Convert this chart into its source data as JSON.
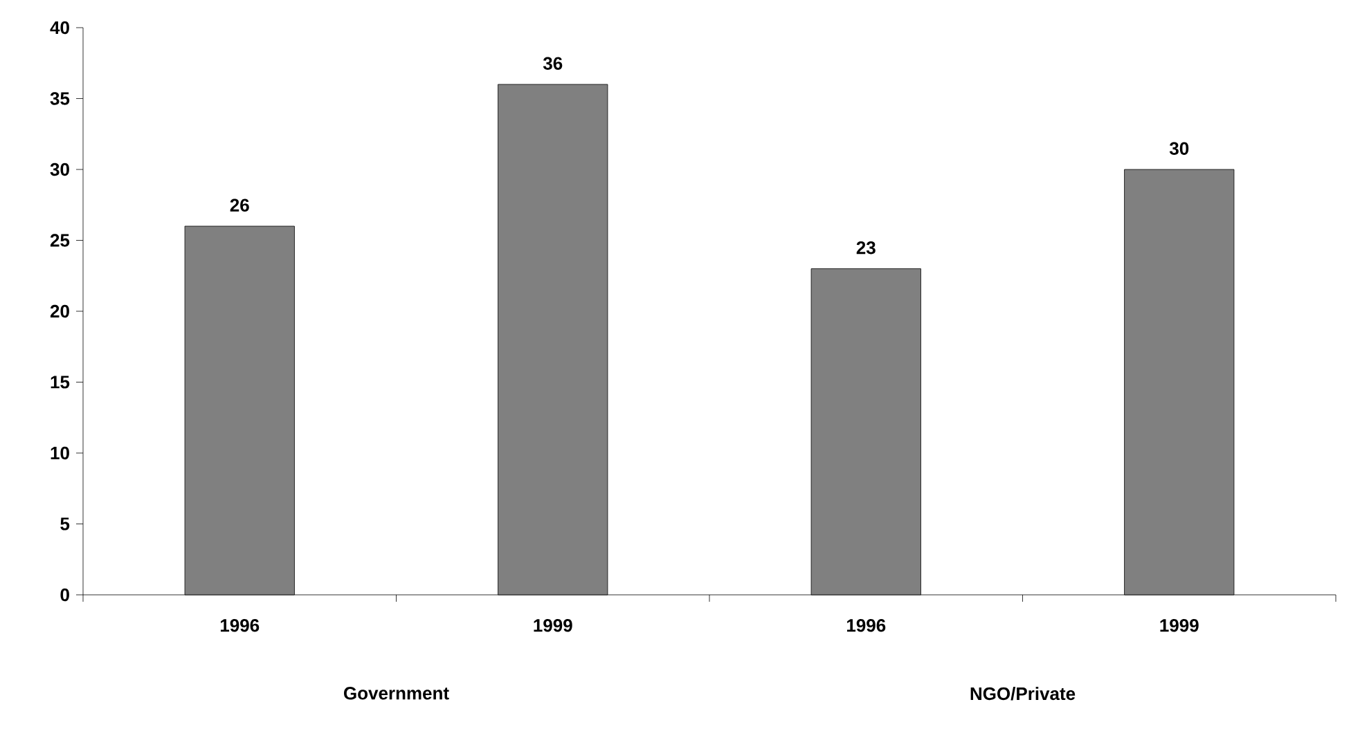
{
  "chart_data": {
    "type": "bar",
    "categories": [
      "1996",
      "1999",
      "1996",
      "1999"
    ],
    "values": [
      26,
      36,
      23,
      30
    ],
    "color": "#808080",
    "ylim": [
      0,
      40
    ],
    "yticks": [
      0,
      5,
      10,
      15,
      20,
      25,
      30,
      35,
      40
    ],
    "data_labels": true,
    "annotations": [
      "Government",
      "NGO/Private"
    ]
  }
}
